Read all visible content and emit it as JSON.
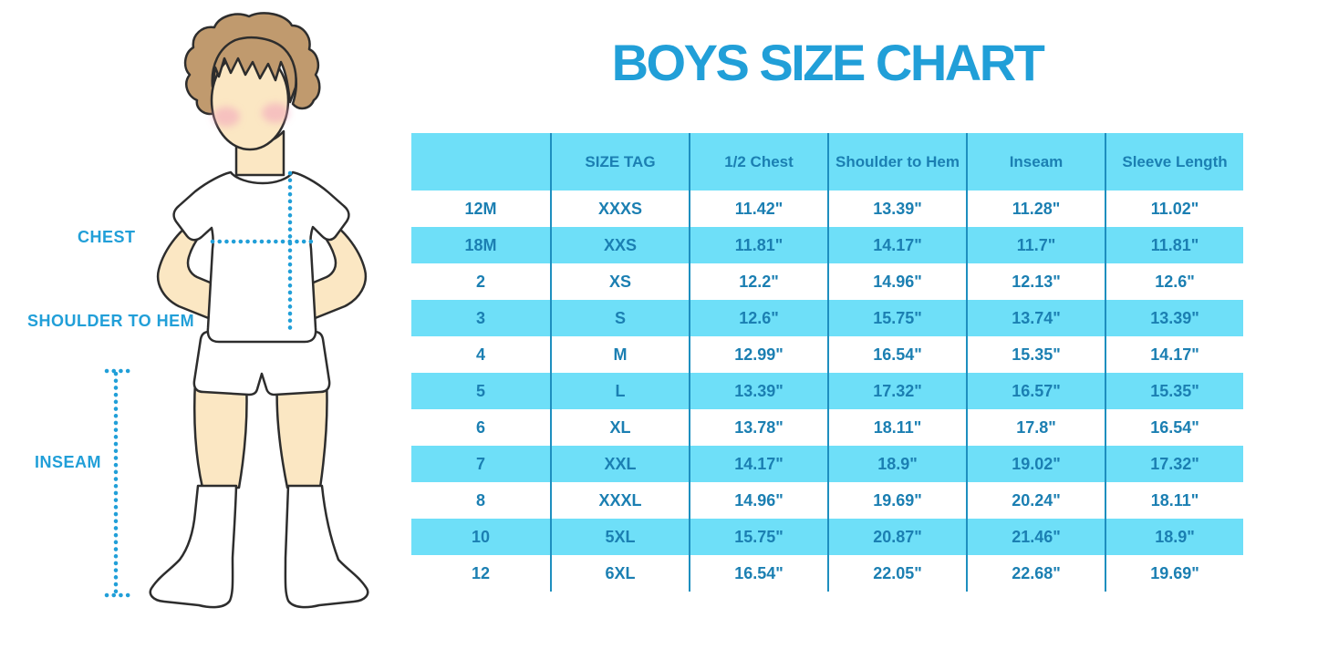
{
  "title": "BOYS SIZE CHART",
  "figure": {
    "labels": {
      "chest": "CHEST",
      "shoulder_to_hem": "SHOULDER TO HEM",
      "inseam": "INSEAM"
    }
  },
  "table": {
    "columns": [
      "",
      "SIZE TAG",
      "1/2 Chest",
      "Shoulder to Hem",
      "Inseam",
      "Sleeve Length"
    ],
    "rows": [
      [
        "12M",
        "XXXS",
        "11.42\"",
        "13.39\"",
        "11.28\"",
        "11.02\""
      ],
      [
        "18M",
        "XXS",
        "11.81\"",
        "14.17\"",
        "11.7\"",
        "11.81\""
      ],
      [
        "2",
        "XS",
        "12.2\"",
        "14.96\"",
        "12.13\"",
        "12.6\""
      ],
      [
        "3",
        "S",
        "12.6\"",
        "15.75\"",
        "13.74\"",
        "13.39\""
      ],
      [
        "4",
        "M",
        "12.99\"",
        "16.54\"",
        "15.35\"",
        "14.17\""
      ],
      [
        "5",
        "L",
        "13.39\"",
        "17.32\"",
        "16.57\"",
        "15.35\""
      ],
      [
        "6",
        "XL",
        "13.78\"",
        "18.11\"",
        "17.8\"",
        "16.54\""
      ],
      [
        "7",
        "XXL",
        "14.17\"",
        "18.9\"",
        "19.02\"",
        "17.32\""
      ],
      [
        "8",
        "XXXL",
        "14.96\"",
        "19.69\"",
        "20.24\"",
        "18.11\""
      ],
      [
        "10",
        "5XL",
        "15.75\"",
        "20.87\"",
        "21.46\"",
        "18.9\""
      ],
      [
        "12",
        "6XL",
        "16.54\"",
        "22.05\"",
        "22.68\"",
        "19.69\""
      ]
    ]
  },
  "colors": {
    "accent_blue": "#219FD8",
    "table_fill_blue": "#6EDFF8",
    "table_text_blue": "#1B7FB2",
    "table_divider_blue": "#1E8FBF",
    "skin": "#FBE7C3",
    "hair_brown": "#C09A6E",
    "blush_pink": "#F2A3BC"
  }
}
